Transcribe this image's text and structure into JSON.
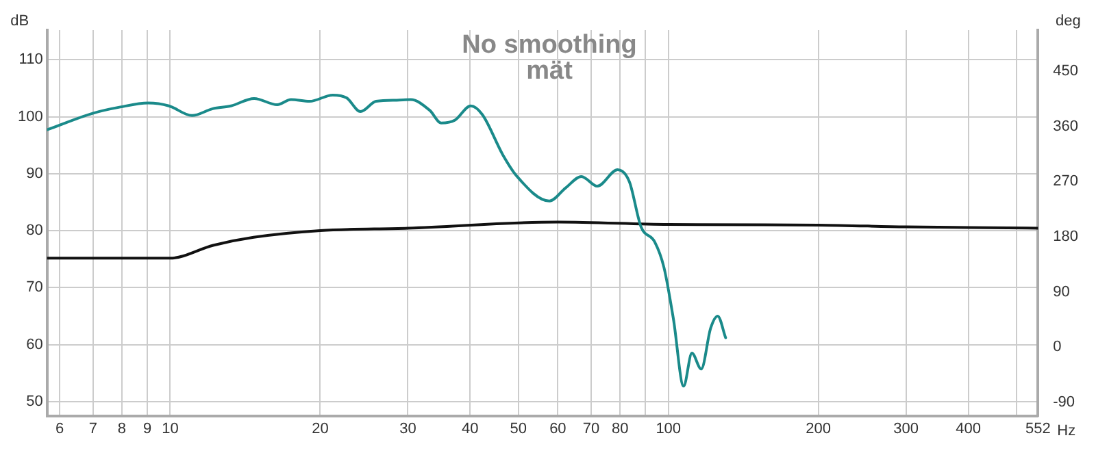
{
  "chart_data": {
    "type": "line",
    "title": "No smoothing",
    "subtitle": "mät",
    "xlabel": "Hz",
    "ylabel": "dB",
    "y2label": "deg",
    "log": "x",
    "xlim": [
      5.66,
      552
    ],
    "xticks": [
      6,
      7,
      8,
      9,
      10,
      20,
      30,
      40,
      50,
      60,
      70,
      80,
      {
        "value": 90,
        "label": null
      },
      100,
      200,
      300,
      400,
      {
        "value": 500,
        "label": null
      },
      552
    ],
    "ylim": [
      47.5,
      115.2
    ],
    "yticks": [
      50,
      60,
      70,
      80,
      90,
      100,
      110
    ],
    "y2lim": [
      -112.5,
      517.5
    ],
    "y2ticks": [
      -90,
      0,
      90,
      180,
      270,
      360,
      450
    ],
    "grid": true,
    "legend": false,
    "marker": "none",
    "line_style": "solid",
    "series": [
      {
        "color": "#1a8a8a",
        "x": [
          5.66,
          6.99,
          7.94,
          9.03,
          9.94,
          11.06,
          12.17,
          13.25,
          14.74,
          16.4,
          17.48,
          19.04,
          21.2,
          22.6,
          24.1,
          25.9,
          28.5,
          30.4,
          33.2,
          35.0,
          37.3,
          40.1,
          42.3,
          46.6,
          49.7,
          57.7,
          62.2,
          66.9,
          72.0,
          79.1,
          83.5,
          88.1,
          93.9,
          98.0,
          102.4,
          107.3,
          111.5,
          116.4,
          121.6,
          125.6,
          130.3
        ],
        "values": [
          97.7,
          100.6,
          101.7,
          102.4,
          101.9,
          100.2,
          101.4,
          101.9,
          103.2,
          102.1,
          103.0,
          102.7,
          103.8,
          103.3,
          100.9,
          102.7,
          102.9,
          103.0,
          101.1,
          98.9,
          99.4,
          101.9,
          100.4,
          93.2,
          89.5,
          85.2,
          87.5,
          89.5,
          87.8,
          90.7,
          88.6,
          80.7,
          78.0,
          73.5,
          64.4,
          52.7,
          58.5,
          55.7,
          62.9,
          65.0,
          61.2
        ]
      },
      {
        "color": "#111111",
        "axis": "y2",
        "x": [
          5.66,
          10,
          12.2,
          14.7,
          20,
          30,
          60,
          100,
          200,
          300,
          400,
          552
        ],
        "values": [
          145,
          145,
          166,
          179,
          190,
          194,
          204,
          200,
          199,
          196,
          195,
          194
        ]
      }
    ]
  }
}
